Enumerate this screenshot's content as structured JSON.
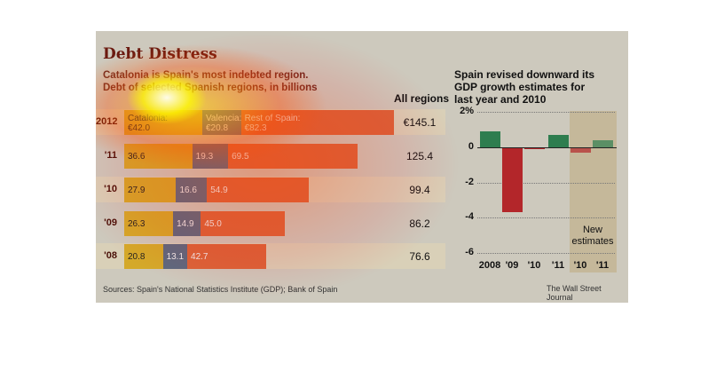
{
  "title": "Debt Distress",
  "subtitle1": "Catalonia is Spain's most indebted region.",
  "subtitle2": "Debt of selected Spanish regions, in billions",
  "all_regions_label": "All regions",
  "source": "Sources: Spain's National Statistics Institute (GDP); Bank of Spain",
  "credit": "The Wall Street Journal",
  "colors": {
    "catalonia": "#d4a92a",
    "valencia": "#5b6a80",
    "rest": "#d9653a",
    "green": "#2e7d4f",
    "red": "#b3262a"
  },
  "chart_data": [
    {
      "type": "bar",
      "stacked": true,
      "orientation": "horizontal",
      "title": "Debt Distress",
      "unit": "€ billions",
      "categories": [
        "2012",
        "'11",
        "'10",
        "'09",
        "'08"
      ],
      "series": [
        {
          "name": "Catalonia",
          "values": [
            42.0,
            36.6,
            27.9,
            26.3,
            20.8
          ]
        },
        {
          "name": "Valencia",
          "values": [
            20.8,
            19.3,
            16.6,
            14.9,
            13.1
          ]
        },
        {
          "name": "Rest of Spain",
          "values": [
            82.3,
            69.5,
            54.9,
            45.0,
            42.7
          ]
        }
      ],
      "labels_2012": [
        "Catalonia:\n€42.0",
        "Valencia:\n€20.8",
        "Rest of Spain:\n€82.3"
      ],
      "value_labels": [
        [
          "36.6",
          "19.3",
          "69.5"
        ],
        [
          "27.9",
          "16.6",
          "54.9"
        ],
        [
          "26.3",
          "14.9",
          "45.0"
        ],
        [
          "20.8",
          "13.1",
          "42.7"
        ]
      ],
      "totals": [
        "€145.1",
        "125.4",
        "99.4",
        "86.2",
        "76.6"
      ]
    },
    {
      "type": "bar",
      "title": "Spain revised downward its GDP growth estimates for last year and 2010",
      "categories": [
        "2008",
        "'09",
        "'10",
        "'11",
        "'10",
        "'11"
      ],
      "values": [
        0.9,
        -3.7,
        -0.1,
        0.7,
        -0.3,
        0.4
      ],
      "ylim": [
        -6,
        2
      ],
      "yticks": [
        "2%",
        "0",
        "-2",
        "-4",
        "-6"
      ],
      "ytick_values": [
        2,
        0,
        -2,
        -4,
        -6
      ],
      "annotation": "New estimates",
      "annotation_line1": "New",
      "annotation_line2": "estimates"
    }
  ]
}
